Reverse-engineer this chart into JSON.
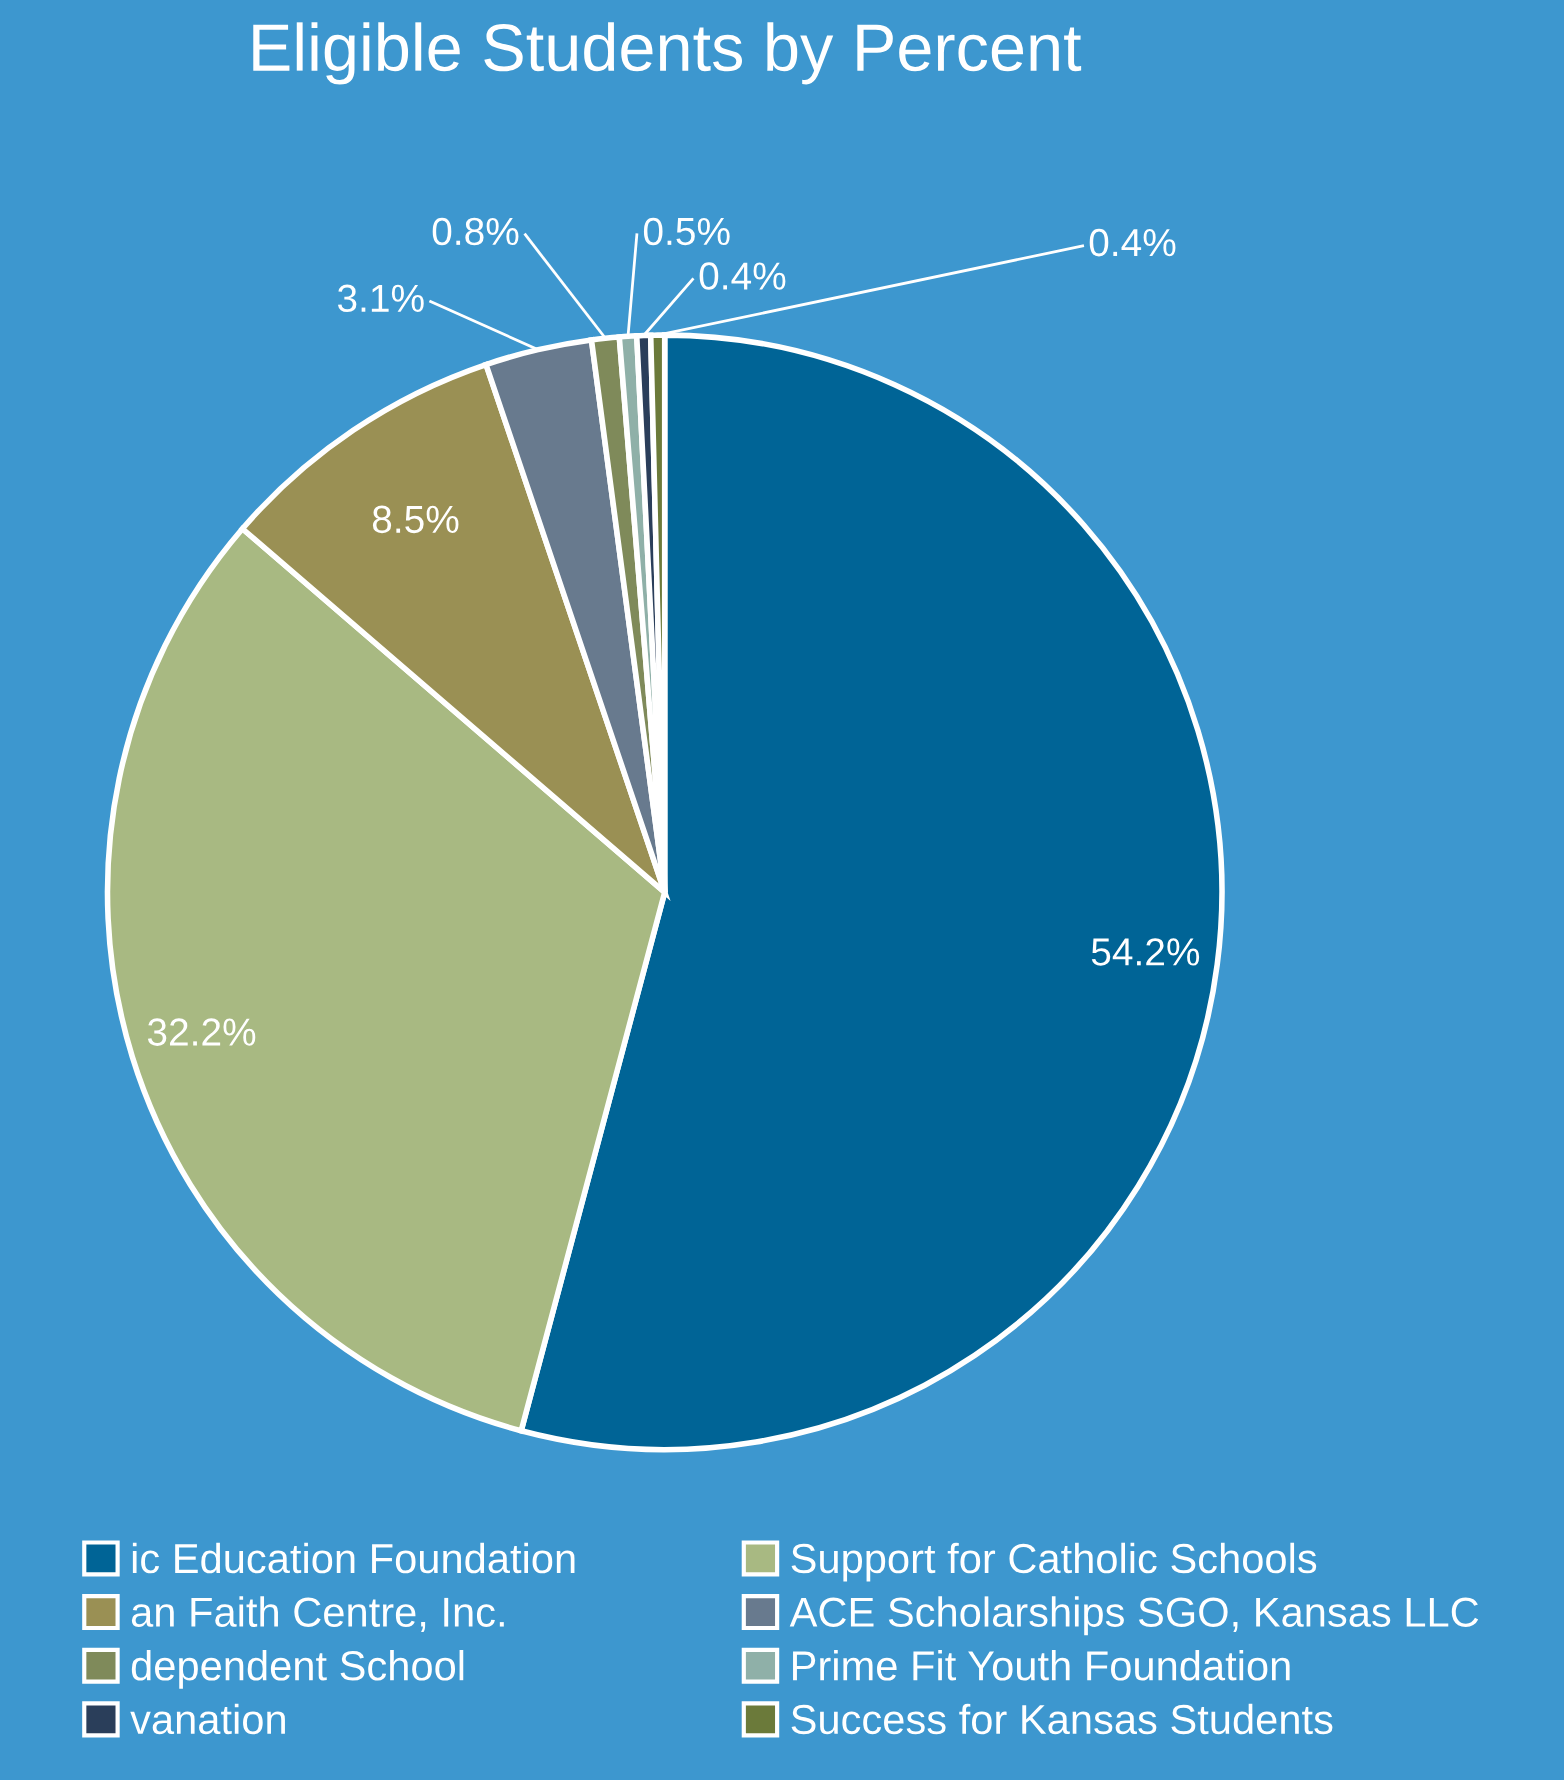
{
  "chart_data": {
    "type": "pie",
    "title": "Eligible Students by Percent",
    "categories": [
      "ic Education Foundation",
      "Support for Catholic Schools",
      "an Faith Centre, Inc.",
      "ACE Scholarships SGO, Kansas LLC",
      "dependent School",
      "Prime Fit Youth Foundation",
      "vanation",
      "Success for Kansas Students"
    ],
    "values": [
      54.2,
      32.2,
      8.5,
      3.1,
      0.8,
      0.5,
      0.4,
      0.4
    ],
    "colors": [
      "#006496",
      "#a8b982",
      "#9a9054",
      "#687a8e",
      "#7f8a5a",
      "#8fb0a8",
      "#2a3e5a",
      "#6b7a3a"
    ],
    "value_labels": [
      "54.2%",
      "32.2%",
      "8.5%",
      "3.1%",
      "0.8%",
      "0.5%",
      "0.4%",
      "0.4%"
    ],
    "legend": "bottom"
  }
}
